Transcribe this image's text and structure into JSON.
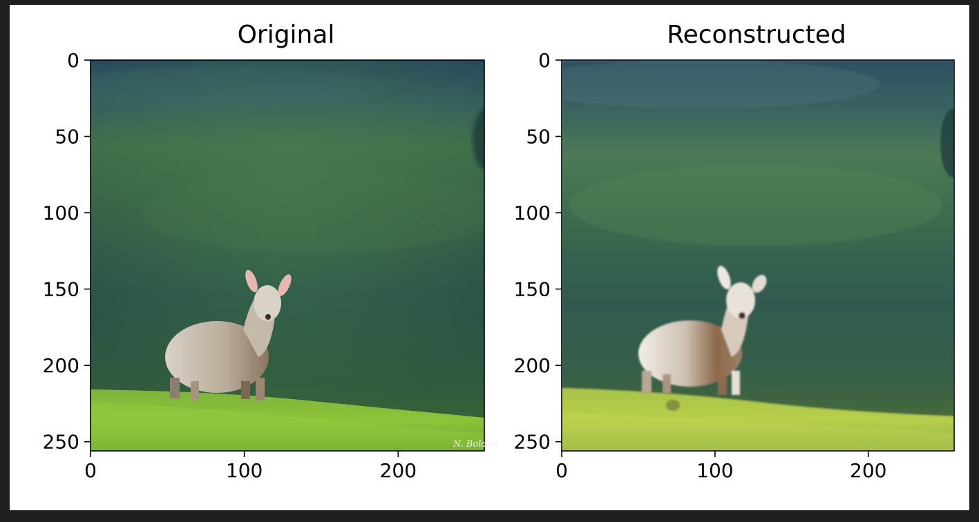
{
  "figure": {
    "panels": [
      {
        "title": "Original",
        "watermark": "N. Bolden"
      },
      {
        "title": "Reconstructed"
      }
    ]
  },
  "chart_data": [
    {
      "type": "image",
      "title": "Original",
      "xticks": [
        0,
        100,
        200
      ],
      "yticks": [
        0,
        50,
        100,
        150,
        200,
        250
      ],
      "xlim": [
        0,
        256
      ],
      "ylim": [
        256,
        0
      ],
      "content": "photo of a lamb standing on a green grassy slope, blurred green hillside background"
    },
    {
      "type": "image",
      "title": "Reconstructed",
      "xticks": [
        0,
        100,
        200
      ],
      "yticks": [
        0,
        50,
        100,
        150,
        200,
        250
      ],
      "xlim": [
        0,
        256
      ],
      "ylim": [
        256,
        0
      ],
      "content": "blurry autoencoder reconstruction of the lamb photo"
    }
  ],
  "colors": {
    "page_bg": "#1f1f1f",
    "figure_bg": "#ffffff",
    "axis": "#000000"
  }
}
